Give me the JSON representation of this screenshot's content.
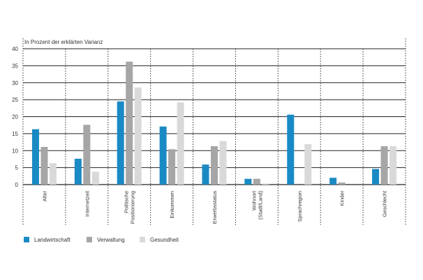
{
  "chart_data": {
    "type": "bar",
    "ylabel": "In Prozent der erklärten Varianz",
    "ylim": [
      0,
      40
    ],
    "yticks": [
      0,
      5,
      10,
      15,
      20,
      25,
      30,
      35,
      40
    ],
    "grid": true,
    "legend_position": "bottom-left",
    "categories": [
      [
        "Alter"
      ],
      [
        "Internetzeit"
      ],
      [
        "Politische",
        "Positionierung"
      ],
      [
        "Einkommen"
      ],
      [
        "Erwerbsstatus"
      ],
      [
        "Wohnort",
        "(Stadt/Land)"
      ],
      [
        "Sprachregion"
      ],
      [
        "Kinder"
      ],
      [
        "Geschlecht"
      ]
    ],
    "series": [
      {
        "name": "Landwirtschaft",
        "color": "#1a8ac4",
        "values": [
          16.3,
          7.6,
          24.5,
          17.1,
          5.9,
          1.7,
          20.6,
          2.0,
          4.6
        ]
      },
      {
        "name": "Verwaltung",
        "color": "#a6a6a6",
        "values": [
          11.1,
          17.6,
          36.2,
          10.4,
          11.3,
          1.7,
          0,
          0.6,
          11.3
        ]
      },
      {
        "name": "Gesundheit",
        "color": "#d9d9d9",
        "values": [
          6.3,
          3.8,
          28.6,
          24.2,
          12.8,
          0.3,
          11.9,
          0,
          11.3
        ]
      }
    ]
  }
}
